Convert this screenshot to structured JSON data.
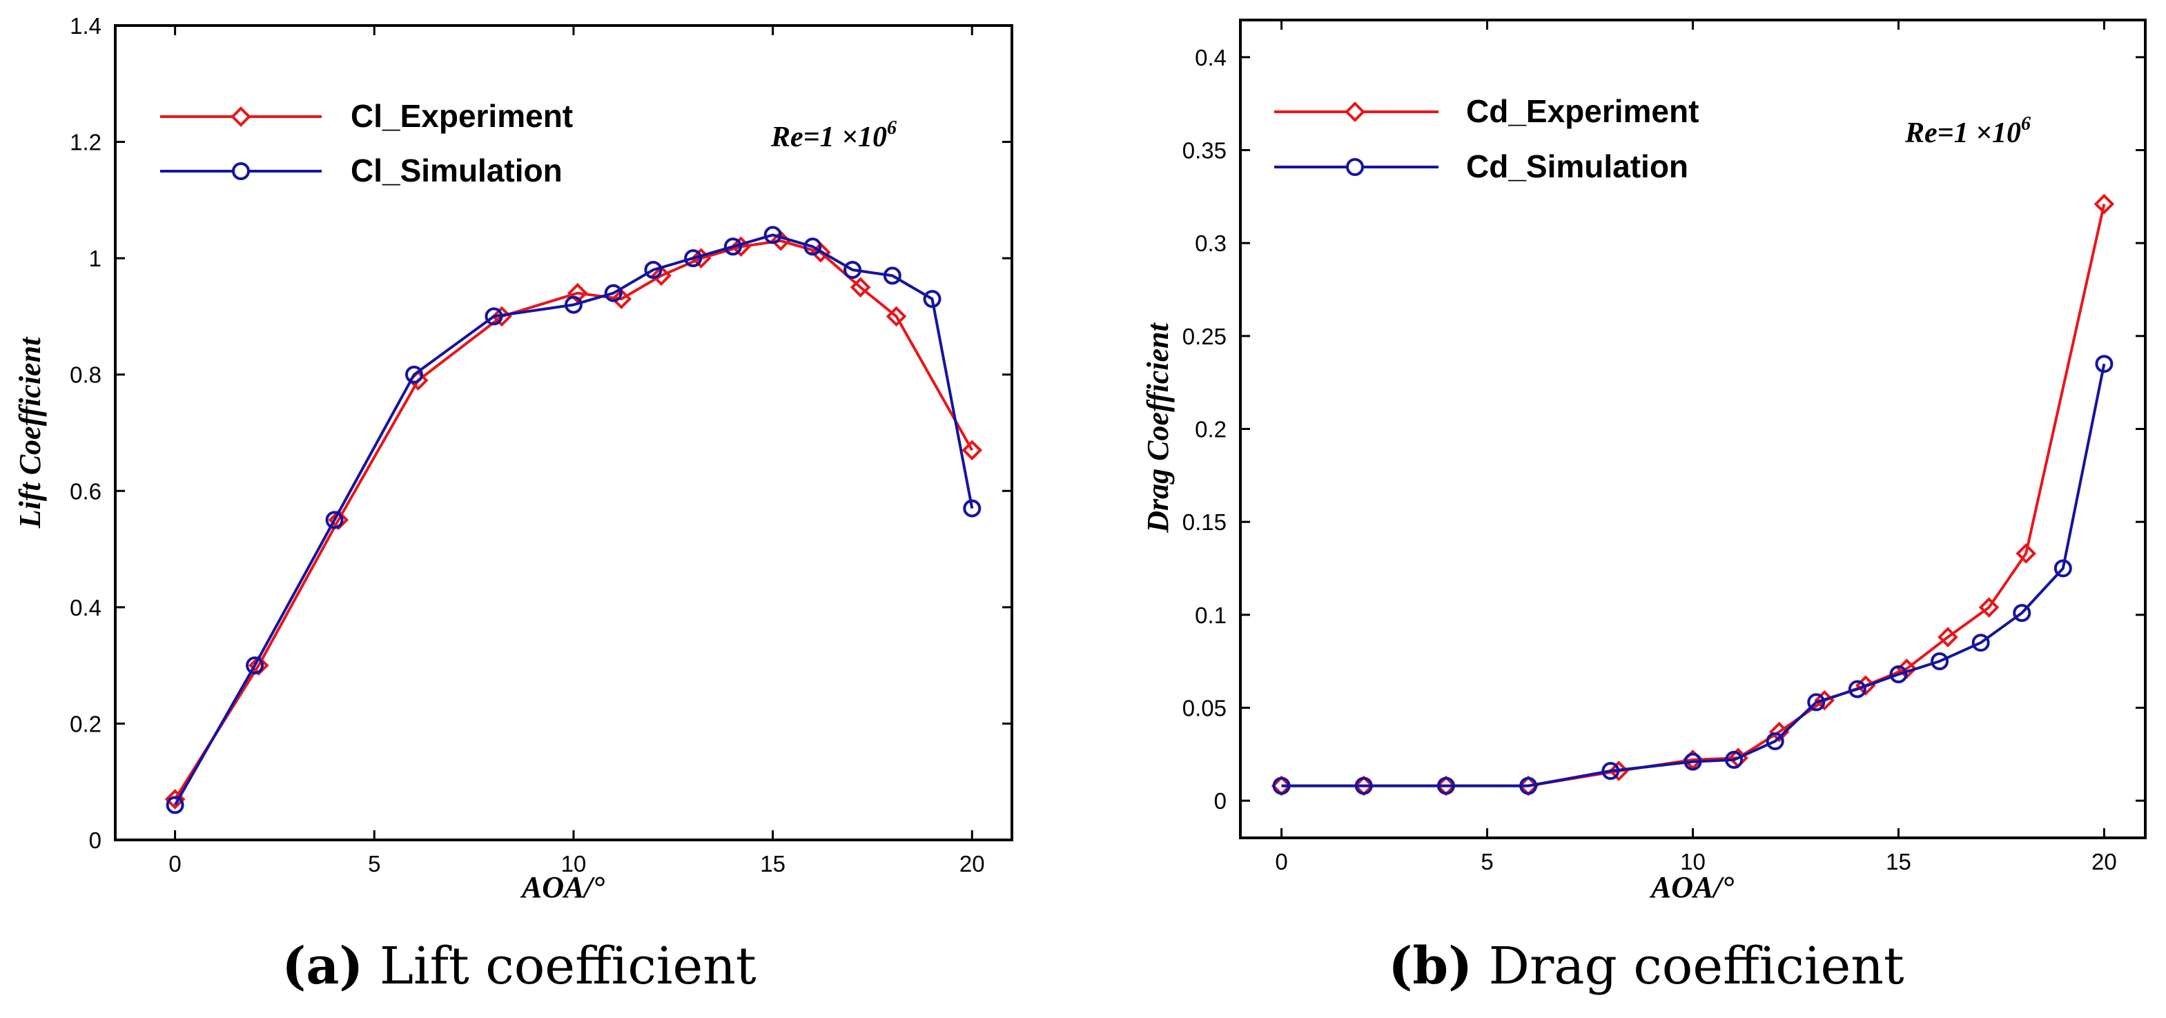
{
  "colors": {
    "experiment": "#e8161b",
    "simulation": "#1414a0",
    "axis": "#000000"
  },
  "chart_data": [
    {
      "type": "line",
      "id": "lift",
      "title": "",
      "xlabel": "AOA/°",
      "ylabel": "Lift Coefficient",
      "xlim": [
        -1.5,
        21
      ],
      "ylim": [
        0,
        1.4
      ],
      "xticks": [
        0,
        5,
        10,
        15,
        20
      ],
      "xtick_labels": [
        "0",
        "5",
        "10",
        "15",
        "20"
      ],
      "yticks": [
        0,
        0.2,
        0.4,
        0.6,
        0.8,
        1,
        1.2,
        1.4
      ],
      "ytick_labels": [
        "0",
        "0.2",
        "0.4",
        "0.6",
        "0.8",
        "1",
        "1.2",
        "1.4"
      ],
      "annotation": {
        "base": "Re=1 ×10",
        "sup": "6"
      },
      "caption": {
        "letter": "(a)",
        "text": " Lift coefficient"
      },
      "series": [
        {
          "name": "Cl_Experiment",
          "color_key": "experiment",
          "marker": "diamond",
          "x": [
            0,
            2.1,
            4.1,
            6.1,
            8.2,
            10.1,
            11.2,
            12.2,
            13.2,
            14.2,
            15.2,
            16.2,
            17.2,
            18.1,
            20
          ],
          "y": [
            0.07,
            0.3,
            0.55,
            0.79,
            0.9,
            0.94,
            0.93,
            0.97,
            1.0,
            1.02,
            1.03,
            1.01,
            0.95,
            0.9,
            0.67
          ]
        },
        {
          "name": "Cl_Simulation",
          "color_key": "simulation",
          "marker": "circle",
          "x": [
            0,
            2,
            4,
            6,
            8,
            10,
            11,
            12,
            13,
            14,
            15,
            16,
            17,
            18,
            19,
            20
          ],
          "y": [
            0.06,
            0.3,
            0.55,
            0.8,
            0.9,
            0.92,
            0.94,
            0.98,
            1.0,
            1.02,
            1.04,
            1.02,
            0.98,
            0.97,
            0.93,
            0.57
          ]
        }
      ]
    },
    {
      "type": "line",
      "id": "drag",
      "title": "",
      "xlabel": "AOA/°",
      "ylabel": "Drag Coefficient",
      "xlim": [
        -1,
        21
      ],
      "ylim": [
        -0.02,
        0.42
      ],
      "xticks": [
        0,
        5,
        10,
        15,
        20
      ],
      "xtick_labels": [
        "0",
        "5",
        "10",
        "15",
        "20"
      ],
      "yticks": [
        0,
        0.05,
        0.1,
        0.15,
        0.2,
        0.25,
        0.3,
        0.35,
        0.4
      ],
      "ytick_labels": [
        "0",
        "0.05",
        "0.1",
        "0.15",
        "0.2",
        "0.25",
        "0.3",
        "0.35",
        "0.4"
      ],
      "annotation": {
        "base": "Re=1 ×10",
        "sup": "6"
      },
      "caption": {
        "letter": "(b)",
        "text": " Drag coefficient"
      },
      "series": [
        {
          "name": "Cd_Experiment",
          "color_key": "experiment",
          "marker": "diamond",
          "x": [
            0,
            2,
            4,
            6,
            8.2,
            10,
            11.1,
            12.1,
            13.2,
            14.2,
            15.2,
            16.2,
            17.2,
            18.1,
            20
          ],
          "y": [
            0.008,
            0.008,
            0.008,
            0.008,
            0.016,
            0.022,
            0.023,
            0.037,
            0.054,
            0.062,
            0.071,
            0.088,
            0.104,
            0.133,
            0.321
          ]
        },
        {
          "name": "Cd_Simulation",
          "color_key": "simulation",
          "marker": "circle",
          "x": [
            0,
            2,
            4,
            6,
            8,
            10,
            11,
            12,
            13,
            14,
            15,
            16,
            17,
            18,
            19,
            20
          ],
          "y": [
            0.008,
            0.008,
            0.008,
            0.008,
            0.016,
            0.021,
            0.022,
            0.032,
            0.053,
            0.06,
            0.068,
            0.075,
            0.085,
            0.101,
            0.125,
            0.235
          ]
        }
      ]
    }
  ]
}
